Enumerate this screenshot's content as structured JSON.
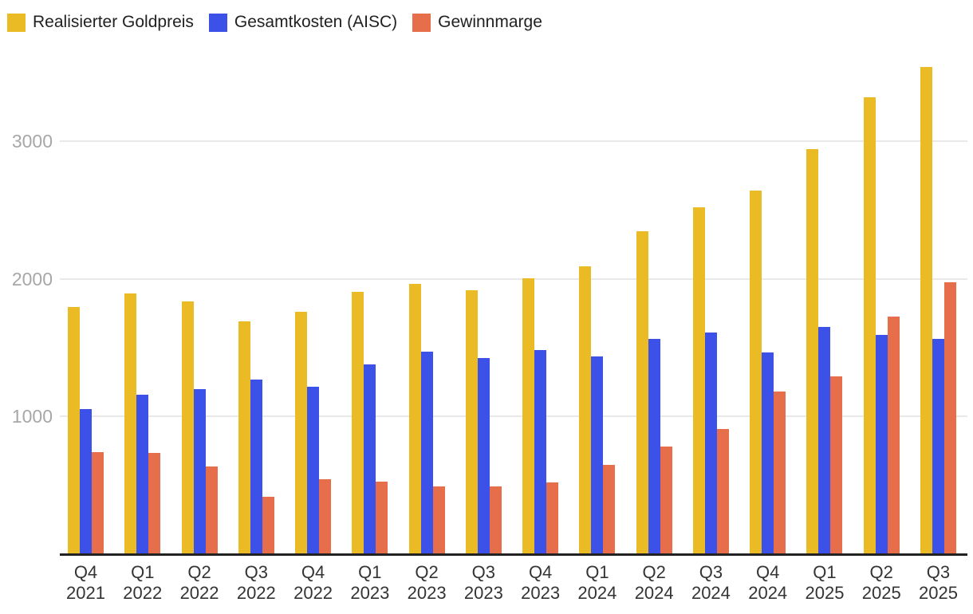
{
  "chart_data": {
    "type": "bar",
    "title": "",
    "legend_position": "top-left",
    "grid": true,
    "yticks": [
      1000,
      2000,
      3000
    ],
    "ylim": [
      0,
      4020
    ],
    "categories": [
      [
        "Q4",
        "2021"
      ],
      [
        "Q1",
        "2022"
      ],
      [
        "Q2",
        "2022"
      ],
      [
        "Q3",
        "2022"
      ],
      [
        "Q4",
        "2022"
      ],
      [
        "Q1",
        "2023"
      ],
      [
        "Q2",
        "2023"
      ],
      [
        "Q3",
        "2023"
      ],
      [
        "Q4",
        "2023"
      ],
      [
        "Q1",
        "2024"
      ],
      [
        "Q2",
        "2024"
      ],
      [
        "Q3",
        "2024"
      ],
      [
        "Q4",
        "2024"
      ],
      [
        "Q1",
        "2025"
      ],
      [
        "Q2",
        "2025"
      ],
      [
        "Q3",
        "2025"
      ]
    ],
    "series": [
      {
        "name": "Realisierter Goldpreis",
        "color": "#EABB24",
        "values": [
          1798,
          1892,
          1836,
          1691,
          1758,
          1906,
          1965,
          1920,
          2004,
          2090,
          2347,
          2518,
          2643,
          2944,
          3320,
          3539
        ]
      },
      {
        "name": "Gesamtkosten (AISC)",
        "color": "#3C51E8",
        "values": [
          1056,
          1156,
          1199,
          1271,
          1215,
          1376,
          1472,
          1426,
          1485,
          1439,
          1562,
          1611,
          1463,
          1651,
          1593,
          1566
        ]
      },
      {
        "name": "Gewinnmarge",
        "color": "#E66E4B",
        "values": [
          742,
          736,
          637,
          420,
          543,
          530,
          493,
          494,
          519,
          651,
          785,
          907,
          1180,
          1293,
          1727,
          1973
        ]
      }
    ],
    "colors": {
      "gridline": "#E9E9E9",
      "axis_line": "#222222",
      "y_tick_label": "#A7A7A7",
      "x_tick_label": "#343434",
      "legend_text": "#212121",
      "background": "#FFFFFF"
    }
  }
}
